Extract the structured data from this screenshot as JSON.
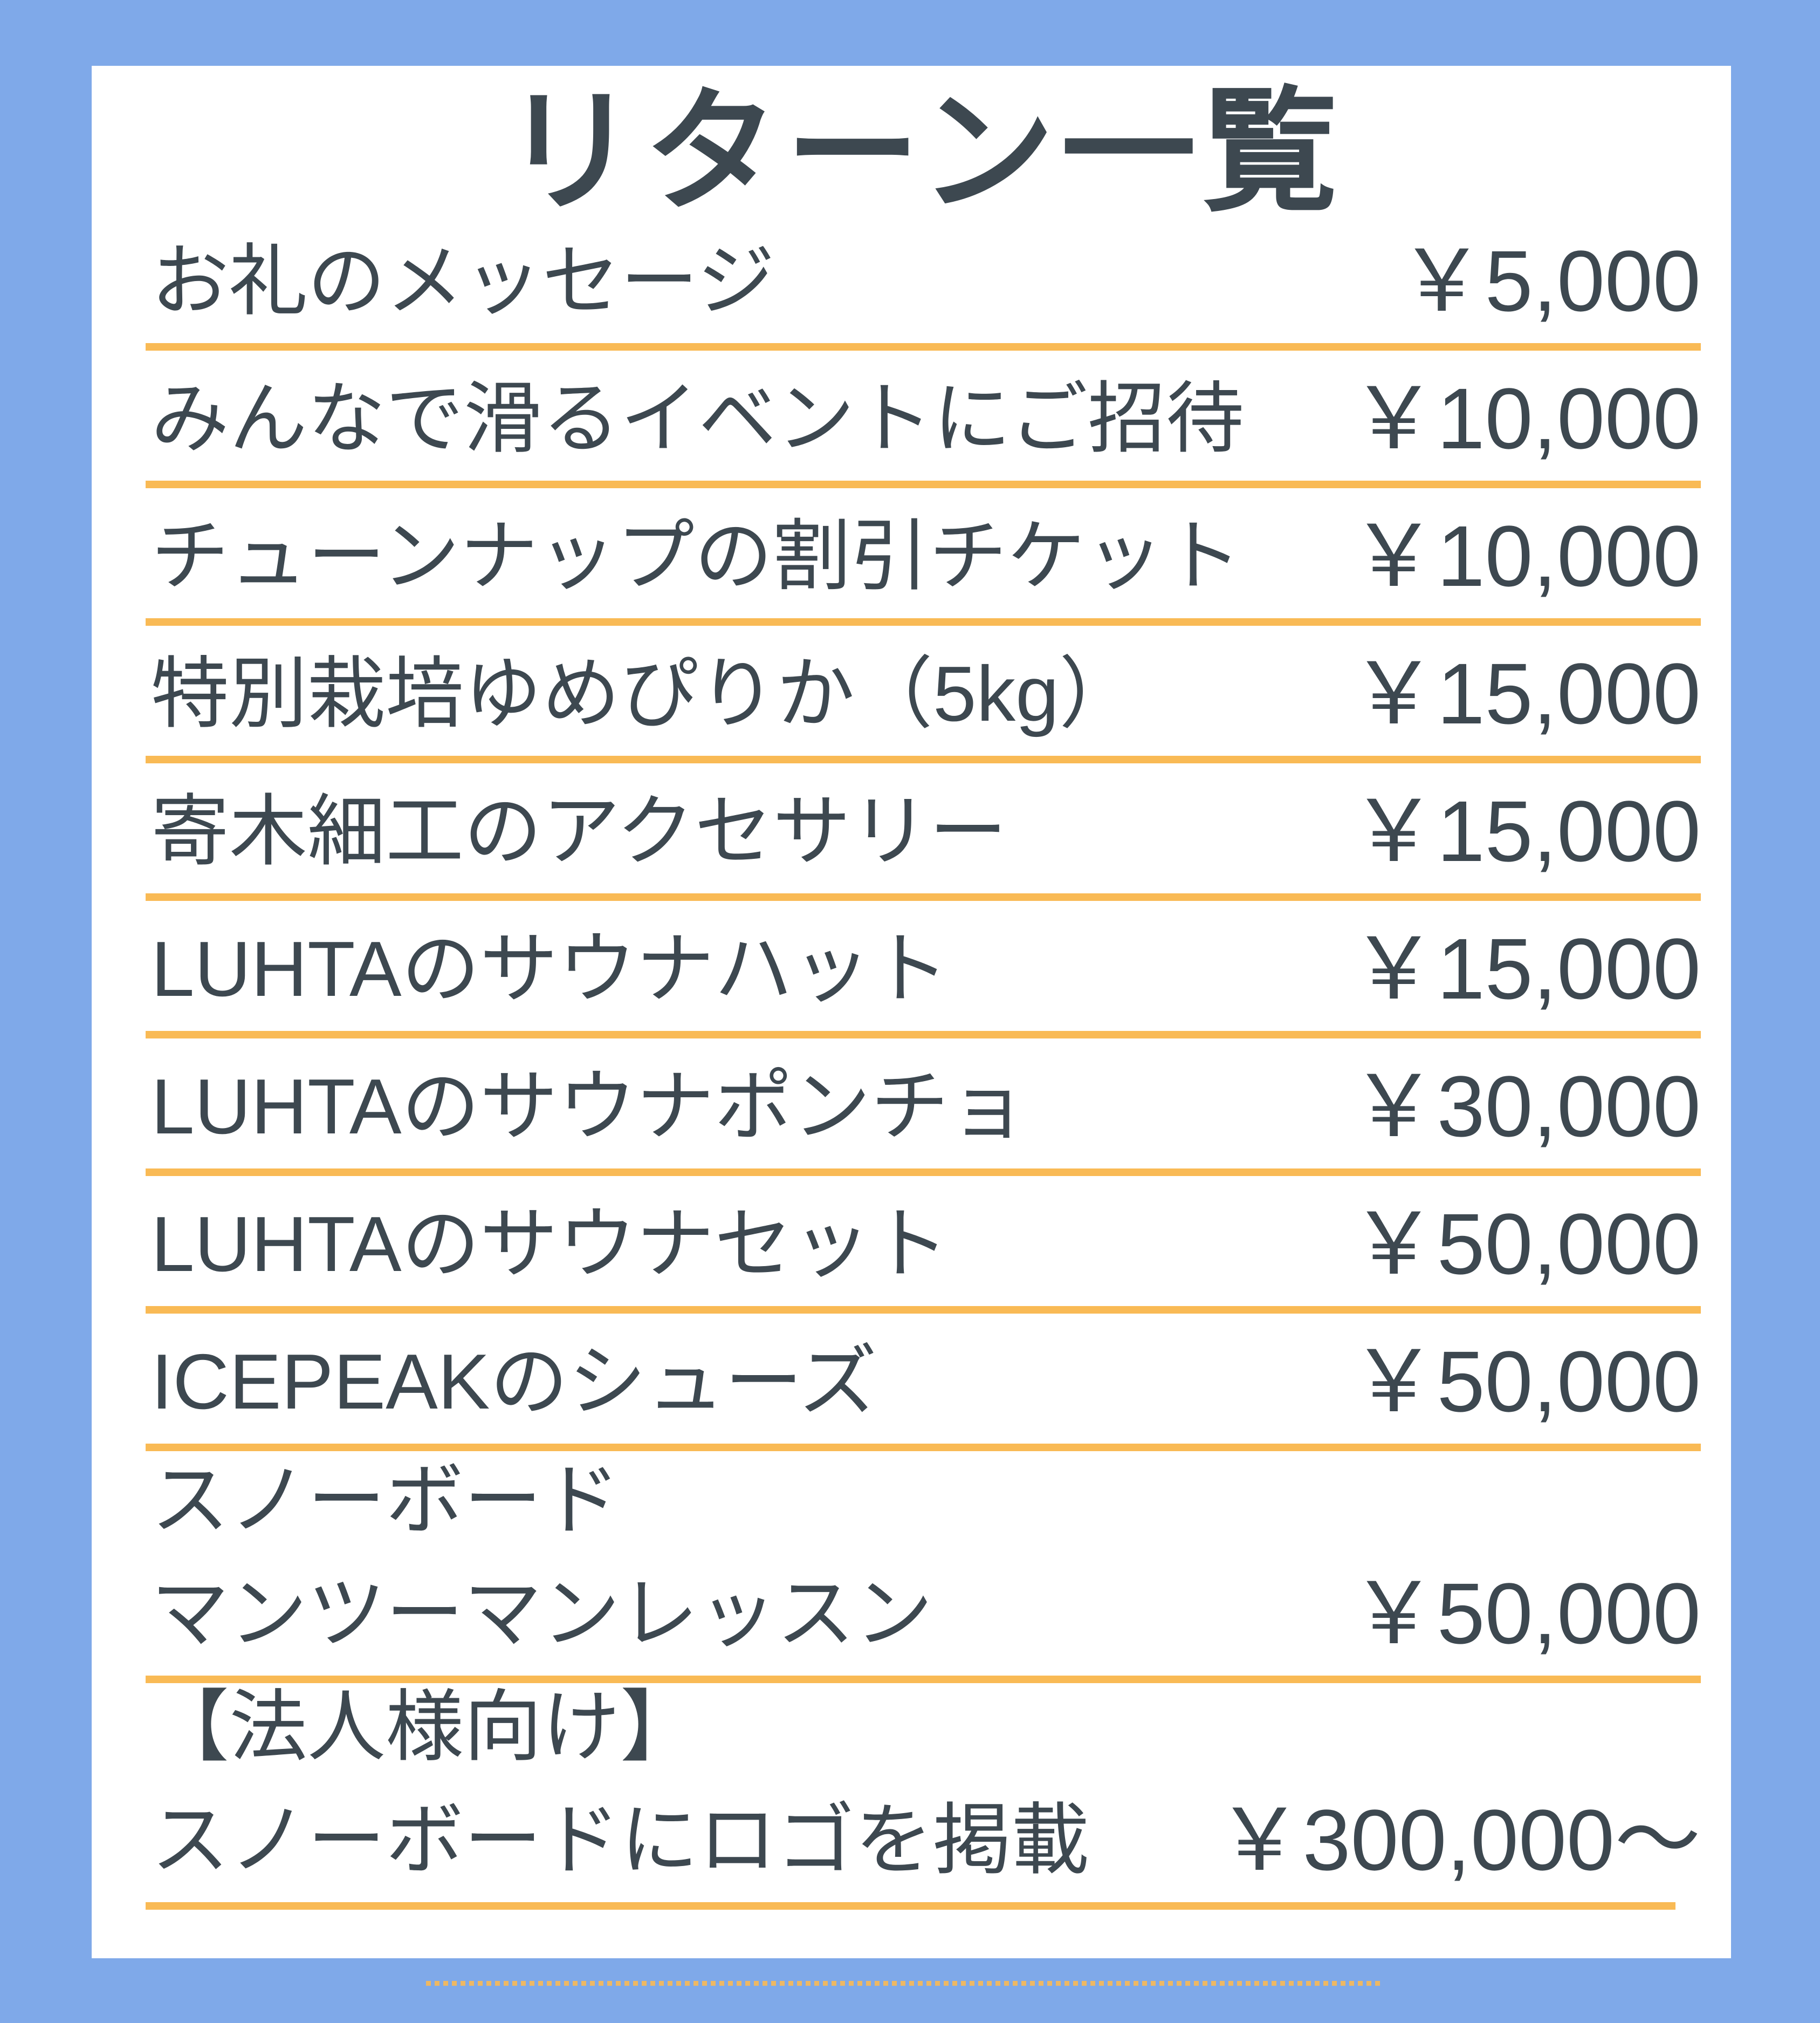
{
  "title": "リターン一覧",
  "colors": {
    "background": "#7FA9E9",
    "card": "#FFFFFF",
    "text": "#3D4850",
    "accent": "#F9BA55"
  },
  "rows": [
    {
      "label_lines": [
        "お礼のメッセージ"
      ],
      "price": "￥5,000"
    },
    {
      "label_lines": [
        "みんなで滑るイベントにご招待"
      ],
      "price": "￥10,000"
    },
    {
      "label_lines": [
        "チューンナップの割引チケット"
      ],
      "price": "￥10,000"
    },
    {
      "label_lines": [
        "特別栽培ゆめぴりか（5kg）"
      ],
      "price": "￥15,000"
    },
    {
      "label_lines": [
        "寄木細工のアクセサリー"
      ],
      "price": "￥15,000"
    },
    {
      "label_lines": [
        "LUHTAのサウナハット"
      ],
      "price": "￥15,000"
    },
    {
      "label_lines": [
        "LUHTAのサウナポンチョ"
      ],
      "price": "￥30,000"
    },
    {
      "label_lines": [
        "LUHTAのサウナセット"
      ],
      "price": "￥50,000"
    },
    {
      "label_lines": [
        "ICEPEAKのシューズ"
      ],
      "price": "￥50,000"
    },
    {
      "label_lines": [
        "スノーボード",
        "マンツーマンレッスン"
      ],
      "price": "￥50,000"
    },
    {
      "label_lines": [
        "【法人様向け】",
        "スノーボードにロゴを掲載"
      ],
      "price": "￥300,000〜"
    }
  ]
}
